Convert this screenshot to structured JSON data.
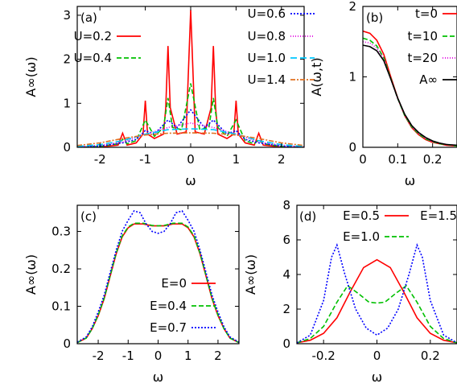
{
  "chart_data": [
    {
      "panel": "(a)",
      "type": "line",
      "xlabel": "ω",
      "ylabel": "A∞(ω)",
      "xlim": [
        -2.5,
        2.5
      ],
      "ylim": [
        0,
        3.2
      ],
      "xticks": [
        -2,
        -1,
        0,
        1,
        2
      ],
      "yticks": [
        0,
        1,
        2,
        3
      ],
      "legend_position": "top",
      "series": [
        {
          "name": "U=0.2",
          "color": "#ff0000",
          "dash": "solid",
          "x": [
            -2.5,
            -2.0,
            -1.8,
            -1.6,
            -1.5,
            -1.4,
            -1.2,
            -1.05,
            -1.0,
            -0.95,
            -0.8,
            -0.6,
            -0.55,
            -0.5,
            -0.45,
            -0.3,
            -0.1,
            0.0,
            0.1,
            0.3,
            0.45,
            0.5,
            0.55,
            0.6,
            0.8,
            0.95,
            1.0,
            1.05,
            1.2,
            1.4,
            1.5,
            1.6,
            1.8,
            2.0,
            2.5
          ],
          "values": [
            0.0,
            0.0,
            0.03,
            0.05,
            0.32,
            0.05,
            0.1,
            0.3,
            1.06,
            0.3,
            0.2,
            0.3,
            0.9,
            2.3,
            0.9,
            0.3,
            0.35,
            3.12,
            0.35,
            0.3,
            0.9,
            2.3,
            0.9,
            0.3,
            0.2,
            0.3,
            1.06,
            0.3,
            0.1,
            0.05,
            0.32,
            0.05,
            0.03,
            0.0,
            0.0
          ]
        },
        {
          "name": "U=0.4",
          "color": "#00c000",
          "dash": "6,3",
          "x": [
            -2.5,
            -2.0,
            -1.6,
            -1.5,
            -1.4,
            -1.2,
            -1.0,
            -0.8,
            -0.6,
            -0.5,
            -0.4,
            -0.2,
            0.0,
            0.2,
            0.4,
            0.5,
            0.6,
            0.8,
            1.0,
            1.2,
            1.4,
            1.5,
            1.6,
            2.0,
            2.5
          ],
          "values": [
            0.0,
            0.02,
            0.08,
            0.18,
            0.08,
            0.15,
            0.62,
            0.25,
            0.45,
            1.12,
            0.45,
            0.4,
            1.45,
            0.4,
            0.45,
            1.12,
            0.45,
            0.25,
            0.62,
            0.15,
            0.08,
            0.18,
            0.08,
            0.02,
            0.0
          ]
        },
        {
          "name": "U=0.6",
          "color": "#0000ff",
          "dash": "2,2",
          "x": [
            -2.5,
            -2.0,
            -1.5,
            -1.2,
            -1.0,
            -0.8,
            -0.5,
            -0.3,
            0.0,
            0.3,
            0.5,
            0.8,
            1.0,
            1.2,
            1.5,
            2.0,
            2.5
          ],
          "values": [
            0.0,
            0.03,
            0.1,
            0.18,
            0.38,
            0.3,
            0.62,
            0.45,
            0.85,
            0.45,
            0.62,
            0.3,
            0.38,
            0.18,
            0.1,
            0.03,
            0.0
          ]
        },
        {
          "name": "U=0.8",
          "color": "#e000e0",
          "dash": "1,2",
          "x": [
            -2.5,
            -2.0,
            -1.5,
            -1.0,
            -0.5,
            0.0,
            0.5,
            1.0,
            1.5,
            2.0,
            2.5
          ],
          "values": [
            0.01,
            0.05,
            0.12,
            0.3,
            0.45,
            0.55,
            0.45,
            0.3,
            0.12,
            0.05,
            0.01
          ]
        },
        {
          "name": "U=1.0",
          "color": "#00c8ff",
          "dash": "8,4",
          "x": [
            -2.5,
            -2.0,
            -1.5,
            -1.0,
            -0.5,
            0.0,
            0.5,
            1.0,
            1.5,
            2.0,
            2.5
          ],
          "values": [
            0.02,
            0.06,
            0.15,
            0.3,
            0.4,
            0.42,
            0.4,
            0.3,
            0.15,
            0.06,
            0.02
          ]
        },
        {
          "name": "U=1.4",
          "color": "#e07020",
          "dash": "6,2,2,2",
          "x": [
            -2.5,
            -2.0,
            -1.5,
            -1.0,
            -0.5,
            0.0,
            0.5,
            1.0,
            1.5,
            2.0,
            2.5
          ],
          "values": [
            0.04,
            0.1,
            0.2,
            0.28,
            0.32,
            0.33,
            0.32,
            0.28,
            0.2,
            0.1,
            0.04
          ]
        }
      ]
    },
    {
      "panel": "(b)",
      "type": "line",
      "xlabel": "ω",
      "ylabel": "A(ω,t)",
      "xlim": [
        0,
        0.27
      ],
      "ylim": [
        0,
        2
      ],
      "xticks": [
        0,
        0.1,
        0.2
      ],
      "yticks": [
        0,
        1,
        2
      ],
      "legend_position": "top-right",
      "series": [
        {
          "name": "t=0",
          "color": "#ff0000",
          "dash": "solid",
          "x": [
            0,
            0.02,
            0.04,
            0.06,
            0.08,
            0.1,
            0.12,
            0.14,
            0.16,
            0.18,
            0.2,
            0.22,
            0.24,
            0.27
          ],
          "values": [
            1.65,
            1.62,
            1.52,
            1.32,
            1.0,
            0.7,
            0.45,
            0.28,
            0.18,
            0.11,
            0.07,
            0.05,
            0.03,
            0.02
          ]
        },
        {
          "name": "t=10",
          "color": "#00c000",
          "dash": "6,3",
          "x": [
            0,
            0.02,
            0.04,
            0.06,
            0.08,
            0.1,
            0.12,
            0.14,
            0.16,
            0.18,
            0.2,
            0.22,
            0.24,
            0.27
          ],
          "values": [
            1.55,
            1.52,
            1.44,
            1.27,
            0.98,
            0.69,
            0.45,
            0.29,
            0.19,
            0.12,
            0.08,
            0.05,
            0.04,
            0.02
          ]
        },
        {
          "name": "t=20",
          "color": "#e000e0",
          "dash": "1,2",
          "x": [
            0,
            0.02,
            0.04,
            0.06,
            0.08,
            0.1,
            0.12,
            0.14,
            0.16,
            0.18,
            0.2,
            0.22,
            0.24,
            0.27
          ],
          "values": [
            1.5,
            1.48,
            1.41,
            1.25,
            0.97,
            0.69,
            0.46,
            0.3,
            0.2,
            0.13,
            0.08,
            0.06,
            0.04,
            0.03
          ]
        },
        {
          "name": "A∞",
          "color": "#000000",
          "dash": "solid",
          "x": [
            0,
            0.02,
            0.04,
            0.06,
            0.08,
            0.1,
            0.12,
            0.14,
            0.16,
            0.18,
            0.2,
            0.22,
            0.24,
            0.27
          ],
          "values": [
            1.45,
            1.43,
            1.37,
            1.23,
            0.97,
            0.7,
            0.47,
            0.31,
            0.21,
            0.14,
            0.09,
            0.06,
            0.04,
            0.03
          ]
        }
      ]
    },
    {
      "panel": "(c)",
      "type": "line",
      "xlabel": "ω",
      "ylabel": "A∞(ω)",
      "xlim": [
        -2.7,
        2.7
      ],
      "ylim": [
        0,
        0.37
      ],
      "xticks": [
        -2,
        -1,
        0,
        1,
        2
      ],
      "yticks": [
        0,
        0.1,
        0.2,
        0.3
      ],
      "legend_position": "bottom-center",
      "series": [
        {
          "name": "E=0",
          "color": "#ff0000",
          "dash": "solid",
          "x": [
            -2.7,
            -2.4,
            -2.2,
            -2.0,
            -1.8,
            -1.6,
            -1.4,
            -1.2,
            -1.0,
            -0.8,
            -0.5,
            -0.2,
            0.0,
            0.2,
            0.5,
            0.8,
            1.0,
            1.2,
            1.4,
            1.6,
            1.8,
            2.0,
            2.2,
            2.4,
            2.7
          ],
          "values": [
            0.003,
            0.015,
            0.04,
            0.075,
            0.12,
            0.18,
            0.24,
            0.285,
            0.31,
            0.32,
            0.32,
            0.315,
            0.315,
            0.315,
            0.32,
            0.32,
            0.31,
            0.285,
            0.24,
            0.18,
            0.12,
            0.075,
            0.04,
            0.015,
            0.003
          ]
        },
        {
          "name": "E=0.4",
          "color": "#00c000",
          "dash": "6,3",
          "x": [
            -2.7,
            -2.4,
            -2.2,
            -2.0,
            -1.8,
            -1.6,
            -1.4,
            -1.2,
            -1.0,
            -0.8,
            -0.5,
            -0.2,
            0.0,
            0.2,
            0.5,
            0.8,
            1.0,
            1.2,
            1.4,
            1.6,
            1.8,
            2.0,
            2.2,
            2.4,
            2.7
          ],
          "values": [
            0.003,
            0.015,
            0.04,
            0.077,
            0.122,
            0.182,
            0.242,
            0.288,
            0.312,
            0.322,
            0.322,
            0.316,
            0.315,
            0.316,
            0.322,
            0.322,
            0.312,
            0.288,
            0.242,
            0.182,
            0.122,
            0.077,
            0.04,
            0.015,
            0.003
          ]
        },
        {
          "name": "E=0.7",
          "color": "#0000ff",
          "dash": "2,2",
          "x": [
            -2.7,
            -2.4,
            -2.2,
            -2.0,
            -1.8,
            -1.6,
            -1.4,
            -1.2,
            -1.0,
            -0.8,
            -0.6,
            -0.4,
            -0.2,
            0.0,
            0.2,
            0.4,
            0.6,
            0.8,
            1.0,
            1.2,
            1.4,
            1.6,
            1.8,
            2.0,
            2.2,
            2.4,
            2.7
          ],
          "values": [
            0.004,
            0.018,
            0.045,
            0.085,
            0.13,
            0.19,
            0.25,
            0.3,
            0.33,
            0.355,
            0.35,
            0.32,
            0.3,
            0.295,
            0.3,
            0.32,
            0.35,
            0.355,
            0.33,
            0.3,
            0.25,
            0.19,
            0.13,
            0.085,
            0.045,
            0.018,
            0.004
          ]
        }
      ]
    },
    {
      "panel": "(d)",
      "type": "line",
      "xlabel": "ω",
      "ylabel": "A∞(ω)",
      "xlim": [
        -0.3,
        0.3
      ],
      "ylim": [
        0,
        8
      ],
      "xticks": [
        -0.2,
        0,
        0.2
      ],
      "yticks": [
        0,
        2,
        4,
        6,
        8
      ],
      "legend_position": "top",
      "series": [
        {
          "name": "E=0.5",
          "color": "#ff0000",
          "dash": "solid",
          "x": [
            -0.3,
            -0.25,
            -0.2,
            -0.15,
            -0.1,
            -0.05,
            0.0,
            0.05,
            0.1,
            0.15,
            0.2,
            0.25,
            0.3
          ],
          "values": [
            0.05,
            0.2,
            0.6,
            1.5,
            3.0,
            4.4,
            4.85,
            4.4,
            3.0,
            1.5,
            0.6,
            0.2,
            0.05
          ]
        },
        {
          "name": "E=1.0",
          "color": "#00c000",
          "dash": "6,3",
          "x": [
            -0.3,
            -0.25,
            -0.2,
            -0.15,
            -0.11,
            -0.07,
            -0.03,
            0.0,
            0.03,
            0.07,
            0.11,
            0.15,
            0.2,
            0.25,
            0.3
          ],
          "values": [
            0.05,
            0.3,
            1.0,
            2.4,
            3.35,
            2.9,
            2.4,
            2.35,
            2.4,
            2.9,
            3.35,
            2.4,
            1.0,
            0.3,
            0.05
          ]
        },
        {
          "name": "E=1.5",
          "color": "#0000ff",
          "dash": "2,2",
          "x": [
            -0.3,
            -0.25,
            -0.2,
            -0.17,
            -0.15,
            -0.12,
            -0.08,
            -0.04,
            0.0,
            0.04,
            0.08,
            0.12,
            0.15,
            0.17,
            0.2,
            0.25,
            0.3
          ],
          "values": [
            0.05,
            0.5,
            2.5,
            5.0,
            5.7,
            4.0,
            2.0,
            0.9,
            0.5,
            0.9,
            2.0,
            4.0,
            5.7,
            5.0,
            2.5,
            0.5,
            0.05
          ]
        }
      ]
    }
  ]
}
